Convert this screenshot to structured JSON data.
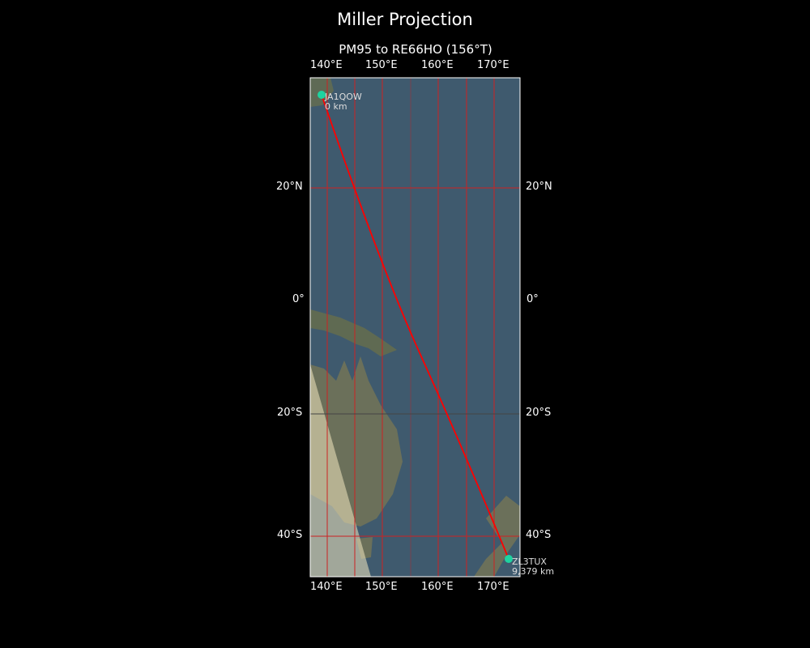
{
  "title": "Miller Projection",
  "subtitle": "PM95 to RE66HO (156°T)",
  "lon_ticks": [
    "140°E",
    "150°E",
    "160°E",
    "170°E"
  ],
  "lat_ticks": [
    "20°N",
    "0°",
    "20°S",
    "40°S"
  ],
  "stations": [
    {
      "call": "JA1QOW",
      "distance": "0 km"
    },
    {
      "call": "ZL3TUX",
      "distance": "9,379 km"
    }
  ],
  "colors": {
    "path": "#ff0000",
    "grid": "#cc2222",
    "marker": "#1ed3a0",
    "ocean": "#3f5a6e",
    "land": "#6b705a"
  }
}
